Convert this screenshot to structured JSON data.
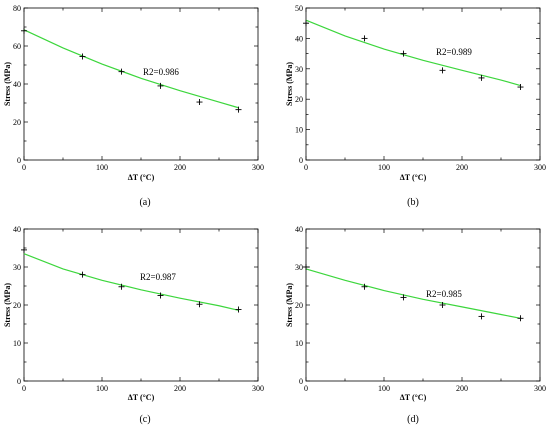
{
  "chart_data": [
    {
      "type": "scatter",
      "panel": "(a)",
      "xlabel": "ΔT (°C)",
      "ylabel": "Stress (MPa)",
      "xlim": [
        0,
        300
      ],
      "ylim": [
        0,
        80
      ],
      "xticks": [
        0,
        100,
        200,
        300
      ],
      "yticks": [
        0,
        20,
        40,
        60,
        80
      ],
      "annotation": "R2=0.986",
      "points": {
        "x": [
          0,
          75,
          125,
          175,
          225,
          275
        ],
        "y": [
          68,
          54.5,
          46.5,
          39,
          30.5,
          26.5
        ]
      },
      "fit": {
        "x": [
          0,
          50,
          100,
          150,
          200,
          250,
          275
        ],
        "y": [
          68.5,
          59,
          50.5,
          43,
          36.5,
          30.5,
          27.5
        ]
      }
    },
    {
      "type": "scatter",
      "panel": "(b)",
      "xlabel": "ΔT (°C)",
      "ylabel": "Stress (MPa)",
      "xlim": [
        0,
        300
      ],
      "ylim": [
        0,
        50
      ],
      "xticks": [
        0,
        100,
        200,
        300
      ],
      "yticks": [
        0,
        10,
        20,
        30,
        40,
        50
      ],
      "annotation": "R2=0.989",
      "points": {
        "x": [
          0,
          75,
          125,
          175,
          225,
          275
        ],
        "y": [
          45,
          40,
          35,
          29.5,
          27,
          24
        ]
      },
      "fit": {
        "x": [
          0,
          50,
          100,
          150,
          200,
          250,
          275
        ],
        "y": [
          46,
          40.8,
          36.5,
          32.8,
          29.5,
          26.3,
          24.5
        ]
      }
    },
    {
      "type": "scatter",
      "panel": "(c)",
      "xlabel": "ΔT (°C)",
      "ylabel": "Stress (MPa)",
      "xlim": [
        0,
        300
      ],
      "ylim": [
        0,
        40
      ],
      "xticks": [
        0,
        100,
        200,
        300
      ],
      "yticks": [
        0,
        10,
        20,
        30,
        40
      ],
      "annotation": "R2=0.987",
      "points": {
        "x": [
          0,
          75,
          125,
          175,
          225,
          275
        ],
        "y": [
          34.5,
          28,
          24.8,
          22.5,
          20.2,
          18.8
        ]
      },
      "fit": {
        "x": [
          0,
          50,
          100,
          150,
          200,
          250,
          275
        ],
        "y": [
          33.5,
          29.5,
          26.5,
          24,
          21.8,
          19.8,
          18.6
        ]
      }
    },
    {
      "type": "scatter",
      "panel": "(d)",
      "xlabel": "ΔT (°C)",
      "ylabel": "Stress (MPa)",
      "xlim": [
        0,
        300
      ],
      "ylim": [
        0,
        40
      ],
      "xticks": [
        0,
        100,
        200,
        300
      ],
      "yticks": [
        0,
        10,
        20,
        30,
        40
      ],
      "annotation": "R2=0.985",
      "points": {
        "x": [
          0,
          75,
          125,
          175,
          225,
          275
        ],
        "y": [
          30,
          24.8,
          22,
          20,
          17,
          16.5
        ]
      },
      "fit": {
        "x": [
          0,
          50,
          100,
          150,
          200,
          250,
          275
        ],
        "y": [
          29.5,
          26.5,
          23.8,
          21.5,
          19.5,
          17.5,
          16.5
        ]
      }
    }
  ],
  "colors": {
    "fit_line": "#3cd63c",
    "marker": "#000000",
    "frame": "#000000"
  }
}
